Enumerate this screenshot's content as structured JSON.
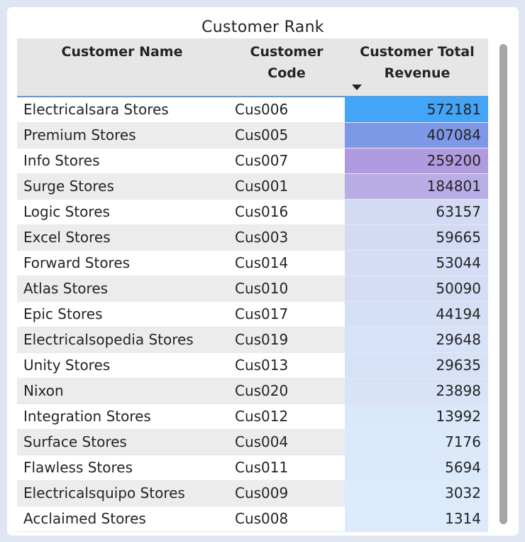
{
  "visual": {
    "title": "Customer Rank"
  },
  "table": {
    "columns": [
      "Customer Name",
      "Customer Code",
      "Customer Total Revenue"
    ],
    "sort": {
      "column": "Customer Total Revenue",
      "direction": "descending"
    },
    "rows": [
      {
        "name": "Electricalsara Stores",
        "code": "Cus006",
        "revenue": "572181",
        "color": "#42a5f8"
      },
      {
        "name": "Premium Stores",
        "code": "Cus005",
        "revenue": "407084",
        "color": "#7d98e7"
      },
      {
        "name": "Info Stores",
        "code": "Cus007",
        "revenue": "259200",
        "color": "#b09ae0"
      },
      {
        "name": "Surge Stores",
        "code": "Cus001",
        "revenue": "184801",
        "color": "#b8ade6"
      },
      {
        "name": "Logic Stores",
        "code": "Cus016",
        "revenue": "63157",
        "color": "#d3dbf4"
      },
      {
        "name": "Excel Stores",
        "code": "Cus003",
        "revenue": "59665",
        "color": "#d3dbf4"
      },
      {
        "name": "Forward Stores",
        "code": "Cus014",
        "revenue": "53044",
        "color": "#d4ddf5"
      },
      {
        "name": "Atlas Stores",
        "code": "Cus010",
        "revenue": "50090",
        "color": "#d4ddf5"
      },
      {
        "name": "Epic Stores",
        "code": "Cus017",
        "revenue": "44194",
        "color": "#d5dff6"
      },
      {
        "name": "Electricalsopedia Stores",
        "code": "Cus019",
        "revenue": "29648",
        "color": "#d7e2f8"
      },
      {
        "name": "Unity Stores",
        "code": "Cus013",
        "revenue": "29635",
        "color": "#d7e2f8"
      },
      {
        "name": "Nixon",
        "code": "Cus020",
        "revenue": "23898",
        "color": "#d8e3f8"
      },
      {
        "name": "Integration Stores",
        "code": "Cus012",
        "revenue": "13992",
        "color": "#d9e8fa"
      },
      {
        "name": "Surface Stores",
        "code": "Cus004",
        "revenue": "7176",
        "color": "#dbeafb"
      },
      {
        "name": "Flawless Stores",
        "code": "Cus011",
        "revenue": "5694",
        "color": "#dbeafb"
      },
      {
        "name": "Electricalsquipo Stores",
        "code": "Cus009",
        "revenue": "3032",
        "color": "#dcebfb"
      },
      {
        "name": "Acclaimed Stores",
        "code": "Cus008",
        "revenue": "1314",
        "color": "#dcebfc"
      }
    ]
  }
}
